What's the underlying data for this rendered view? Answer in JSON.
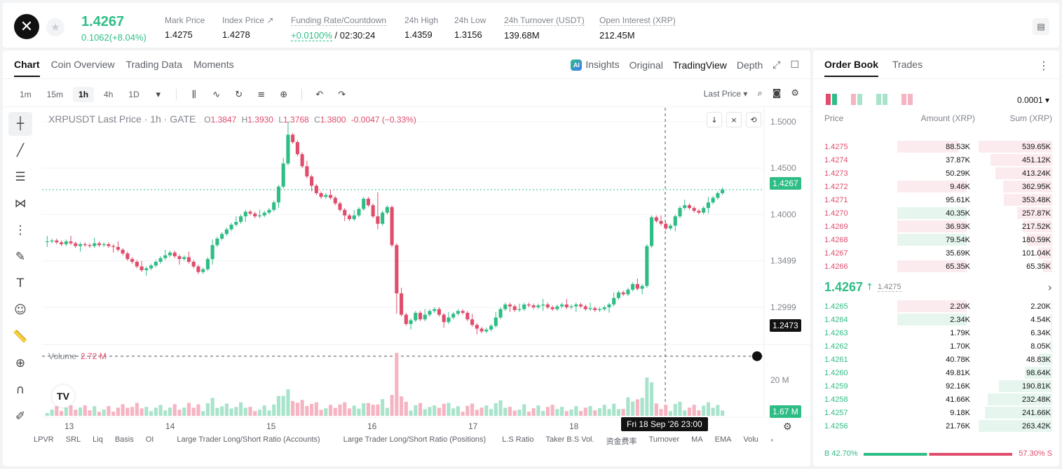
{
  "header": {
    "logo_glyph": "✕",
    "last_price": "1.4267",
    "change": "0.1062(+8.04%)",
    "stats": [
      {
        "label": "Mark Price",
        "value": "1.4275"
      },
      {
        "label": "Index Price ↗",
        "value": "1.4278"
      },
      {
        "label": "Funding Rate/Countdown",
        "value_green": "+0.0100%",
        "value": " / 02:30:24"
      },
      {
        "label": "24h High",
        "value": "1.4359"
      },
      {
        "label": "24h Low",
        "value": "1.3156"
      },
      {
        "label": "24h Turnover (USDT)",
        "value": "139.68M"
      },
      {
        "label": "Open Interest (XRP)",
        "value": "212.45M"
      }
    ]
  },
  "chart_panel": {
    "tabs": [
      "Chart",
      "Coin Overview",
      "Trading Data",
      "Moments"
    ],
    "view_tabs": {
      "insights": "Insights",
      "original": "Original",
      "tradingview": "TradingView",
      "depth": "Depth",
      "ai_badge": "AI"
    },
    "timeframes": [
      "1m",
      "15m",
      "1h",
      "4h",
      "1D"
    ],
    "active_timeframe": "1h",
    "price_source": "Last Price ▾",
    "legend": {
      "symbol": "XRPUSDT Last Price · 1h · GATE",
      "o": "O",
      "o_val": "1.3847",
      "h": "H",
      "h_val": "1.3930",
      "l": "L",
      "l_val": "1.3768",
      "c": "C",
      "c_val": "1.3800",
      "chg": "-0.0047 (−0.33%)"
    },
    "volume_legend": {
      "label": "Volume",
      "value": "2.72 M"
    },
    "y_ticks": [
      "1.5000",
      "1.4500",
      "1.4000",
      "1.3499",
      "1.2999"
    ],
    "vol_ticks": [
      "20 M"
    ],
    "x_ticks": [
      "13",
      "14",
      "15",
      "16",
      "17",
      "18"
    ],
    "current_price_tag": "1.4267",
    "crosshair_price_tag": "1.2473",
    "volume_tag": "1.67 M",
    "crosshair_time": "Fri 18 Sep '26   23:00",
    "tv_logo": "TV",
    "indicators": [
      "LPVR",
      "SRL",
      "Liq",
      "Basis",
      "OI",
      "Large Trader Long/Short Ratio (Accounts)",
      "Large Trader Long/Short Ratio (Positions)",
      "L.S Ratio",
      "Taker B.S Vol.",
      "资金费率",
      "Turnover",
      "MA",
      "EMA",
      "Volu"
    ]
  },
  "order_book": {
    "tabs": [
      "Order Book",
      "Trades"
    ],
    "precision": "0.0001 ▾",
    "headers": {
      "price": "Price",
      "amount": "Amount (XRP)",
      "sum": "Sum (XRP)"
    },
    "asks": [
      {
        "price": "1.4275",
        "amount": "88.53K",
        "sum": "539.65K",
        "amt_level": 0.78,
        "sum_level": 1.0,
        "amt_color": "red"
      },
      {
        "price": "1.4274",
        "amount": "37.87K",
        "sum": "451.12K",
        "amt_level": 0,
        "sum_level": 0.84,
        "amt_color": "red"
      },
      {
        "price": "1.4273",
        "amount": "50.29K",
        "sum": "413.24K",
        "amt_level": 0,
        "sum_level": 0.77,
        "amt_color": "red"
      },
      {
        "price": "1.4272",
        "amount": "9.46K",
        "sum": "362.95K",
        "amt_level": 0.88,
        "sum_level": 0.67,
        "amt_color": "red"
      },
      {
        "price": "1.4271",
        "amount": "95.61K",
        "sum": "353.48K",
        "amt_level": 0,
        "sum_level": 0.66,
        "amt_color": "red"
      },
      {
        "price": "1.4270",
        "amount": "40.35K",
        "sum": "257.87K",
        "amt_level": 0.88,
        "sum_level": 0.48,
        "amt_color": "green"
      },
      {
        "price": "1.4269",
        "amount": "36.93K",
        "sum": "217.52K",
        "amt_level": 0.88,
        "sum_level": 0.4,
        "amt_color": "red"
      },
      {
        "price": "1.4268",
        "amount": "79.54K",
        "sum": "180.59K",
        "amt_level": 0.88,
        "sum_level": 0.34,
        "amt_color": "green"
      },
      {
        "price": "1.4267",
        "amount": "35.69K",
        "sum": "101.04K",
        "amt_level": 0,
        "sum_level": 0.19,
        "amt_color": "red"
      },
      {
        "price": "1.4266",
        "amount": "65.35K",
        "sum": "65.35K",
        "amt_level": 0.88,
        "sum_level": 0.12,
        "amt_color": "red"
      }
    ],
    "mid_price": "1.4267",
    "mid_arrow": "↑",
    "mark_price": "1.4275",
    "mid_chevron": "›",
    "bids": [
      {
        "price": "1.4265",
        "amount": "2.20K",
        "sum": "2.20K",
        "amt_level": 0.88,
        "sum_level": 0.01,
        "amt_color": "red"
      },
      {
        "price": "1.4264",
        "amount": "2.34K",
        "sum": "4.54K",
        "amt_level": 0.88,
        "sum_level": 0.02,
        "amt_color": "green"
      },
      {
        "price": "1.4263",
        "amount": "1.79K",
        "sum": "6.34K",
        "amt_level": 0,
        "sum_level": 0.02,
        "amt_color": "green"
      },
      {
        "price": "1.4262",
        "amount": "1.70K",
        "sum": "8.05K",
        "amt_level": 0,
        "sum_level": 0.03,
        "amt_color": "green"
      },
      {
        "price": "1.4261",
        "amount": "40.78K",
        "sum": "48.83K",
        "amt_level": 0,
        "sum_level": 0.18,
        "amt_color": "green"
      },
      {
        "price": "1.4260",
        "amount": "49.81K",
        "sum": "98.64K",
        "amt_level": 0,
        "sum_level": 0.37,
        "amt_color": "green"
      },
      {
        "price": "1.4259",
        "amount": "92.16K",
        "sum": "190.81K",
        "amt_level": 0,
        "sum_level": 0.72,
        "amt_color": "green"
      },
      {
        "price": "1.4258",
        "amount": "41.66K",
        "sum": "232.48K",
        "amt_level": 0,
        "sum_level": 0.88,
        "amt_color": "green"
      },
      {
        "price": "1.4257",
        "amount": "9.18K",
        "sum": "241.66K",
        "amt_level": 0,
        "sum_level": 0.91,
        "amt_color": "green"
      },
      {
        "price": "1.4256",
        "amount": "21.76K",
        "sum": "263.42K",
        "amt_level": 0,
        "sum_level": 1.0,
        "amt_color": "green"
      }
    ],
    "ratio": {
      "buy_label": "B 42.70%",
      "sell_label": "57.30% S",
      "buy_fraction": 0.427
    }
  },
  "colors": {
    "up": "#2ebd85",
    "down": "#e04c6c",
    "up_bg": "#e6f6ef",
    "down_bg": "#fcebee"
  },
  "chart_data": {
    "type": "candlestick",
    "title": "XRPUSDT Last Price · 1h · GATE",
    "ylim": [
      1.26,
      1.515
    ],
    "x_labels": [
      "13",
      "14",
      "15",
      "16",
      "17",
      "18"
    ],
    "close_path": [
      1.371,
      1.372,
      1.37,
      1.368,
      1.371,
      1.369,
      1.366,
      1.368,
      1.367,
      1.366,
      1.369,
      1.367,
      1.368,
      1.366,
      1.365,
      1.362,
      1.358,
      1.352,
      1.349,
      1.344,
      1.34,
      1.342,
      1.345,
      1.349,
      1.353,
      1.356,
      1.359,
      1.355,
      1.352,
      1.354,
      1.349,
      1.344,
      1.338,
      1.341,
      1.352,
      1.367,
      1.374,
      1.379,
      1.384,
      1.389,
      1.392,
      1.398,
      1.403,
      1.401,
      1.398,
      1.399,
      1.402,
      1.405,
      1.413,
      1.43,
      1.455,
      1.486,
      1.478,
      1.465,
      1.452,
      1.441,
      1.431,
      1.423,
      1.419,
      1.421,
      1.418,
      1.412,
      1.405,
      1.399,
      1.395,
      1.399,
      1.406,
      1.417,
      1.41,
      1.398,
      1.39,
      1.402,
      1.408,
      1.367,
      1.315,
      1.292,
      1.282,
      1.286,
      1.294,
      1.287,
      1.292,
      1.296,
      1.298,
      1.292,
      1.284,
      1.289,
      1.293,
      1.296,
      1.294,
      1.287,
      1.281,
      1.277,
      1.274,
      1.276,
      1.28,
      1.289,
      1.298,
      1.303,
      1.301,
      1.297,
      1.298,
      1.303,
      1.302,
      1.3,
      1.302,
      1.303,
      1.3,
      1.298,
      1.301,
      1.303,
      1.3,
      1.301,
      1.303,
      1.301,
      1.298,
      1.299,
      1.297,
      1.298,
      1.3,
      1.303,
      1.31,
      1.316,
      1.314,
      1.319,
      1.325,
      1.32,
      1.323,
      1.366,
      1.397,
      1.393,
      1.39,
      1.385,
      1.388,
      1.398,
      1.407,
      1.41,
      1.407,
      1.404,
      1.402,
      1.407,
      1.413,
      1.418,
      1.423,
      1.427
    ],
    "volume_note": "heavy spike near 16",
    "current_price": 1.4267,
    "crosshair_price": 1.2473
  }
}
